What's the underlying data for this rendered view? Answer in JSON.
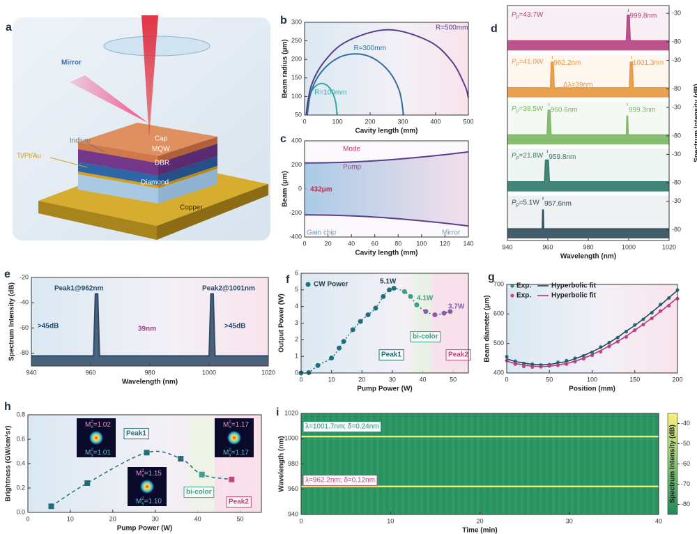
{
  "illustration": {
    "label": "a",
    "mirror": "Mirror",
    "indium": "Indium",
    "tiptau": "Ti/Pt/Au",
    "cap": "Cap",
    "mqw": "MQW",
    "dbr": "DBR",
    "diamond": "Diamond",
    "copper": "Copper"
  },
  "chart_data": [
    {
      "label": "b",
      "type": "line",
      "xlabel": "Cavity length (mm)",
      "ylabel": "Beam radius (μm)",
      "xlim": [
        0,
        500
      ],
      "ylim": [
        50,
        300
      ],
      "xticks": [
        0,
        100,
        200,
        300,
        400,
        500
      ],
      "yticks": [
        50,
        100,
        150,
        200,
        250,
        300
      ],
      "series": [
        {
          "name": "R=100mm",
          "color": "#3aa6a0",
          "x": [
            5,
            10,
            20,
            35,
            52,
            70,
            85,
            95,
            99
          ],
          "values": [
            50,
            88,
            112,
            129,
            135,
            129,
            111,
            84,
            50
          ]
        },
        {
          "name": "R=300mm",
          "color": "#2f6f9f",
          "x": [
            8,
            20,
            50,
            100,
            155,
            210,
            260,
            290,
            302
          ],
          "values": [
            50,
            113,
            165,
            203,
            215,
            203,
            165,
            113,
            50
          ]
        },
        {
          "name": "R=500mm",
          "color": "#5a3d8f",
          "x": [
            5,
            20,
            60,
            130,
            255,
            380,
            450,
            490,
            500
          ],
          "values": [
            50,
            128,
            194,
            249,
            280,
            249,
            194,
            128,
            96
          ]
        }
      ]
    },
    {
      "label": "c",
      "type": "line",
      "xlabel": "Cavity length (mm)",
      "ylabel": "Beam (μm)",
      "xlim": [
        0,
        140
      ],
      "ylim": [
        -400,
        400
      ],
      "xticks": [
        0,
        20,
        40,
        60,
        80,
        100,
        120,
        140
      ],
      "yticks": [
        -400,
        -200,
        0,
        200,
        400
      ],
      "series": [
        {
          "color": "#5a3d8f",
          "x": [
            0,
            20,
            40,
            60,
            80,
            100,
            120,
            140
          ],
          "values": [
            216,
            218,
            224,
            234,
            248,
            265,
            285,
            308
          ]
        },
        {
          "color": "#5a3d8f",
          "x": [
            0,
            20,
            40,
            60,
            80,
            100,
            120,
            140
          ],
          "values": [
            -216,
            -218,
            -224,
            -234,
            -248,
            -265,
            -285,
            -308
          ]
        }
      ],
      "annotations": [
        "432μm",
        "Mode",
        "Pump",
        "Gain chip",
        "Mirror"
      ]
    },
    {
      "label": "d",
      "type": "spectra_stack",
      "xlabel": "Wavelength (nm)",
      "ylabel": "Spectrum Intensity (dB)",
      "xlim": [
        940,
        1020
      ],
      "ylim": [
        -95,
        -20
      ],
      "xticks": [
        940,
        960,
        980,
        1000,
        1020
      ],
      "yticks": [
        -80,
        -30
      ],
      "label_symbol": "P",
      "label_sub": "p",
      "rows": [
        {
          "label": "=43.7W",
          "color": "#b5427f",
          "x": [
            940,
            998.8,
            999.3,
            1000.3,
            1000.8,
            1020
          ],
          "values": [
            -78,
            -78,
            -33,
            -33,
            -78,
            -78
          ],
          "peaks": [
            {
              "value": 999.8,
              "label": "999.8nm"
            }
          ]
        },
        {
          "label": "=41.0W",
          "color": "#e8963f",
          "x": [
            940,
            961.2,
            961.7,
            962.7,
            963.2,
            1000.3,
            1000.8,
            1001.8,
            1002.3,
            1020
          ],
          "values": [
            -78,
            -78,
            -33,
            -33,
            -78,
            -78,
            -33,
            -33,
            -78,
            -78
          ],
          "peaks": [
            {
              "value": 962.2,
              "label": "962.2nm"
            },
            {
              "value": 1001.3,
              "label": "1001.3nm"
            }
          ]
        },
        {
          "label": "=38.5W",
          "color": "#7bb662",
          "x": [
            940,
            959.6,
            960.1,
            961.1,
            961.6,
            998.8,
            999.1,
            999.5,
            999.8,
            1020
          ],
          "values": [
            -78,
            -78,
            -35,
            -35,
            -78,
            -78,
            -45,
            -45,
            -78,
            -78
          ],
          "peaks": [
            {
              "value": 960.6,
              "label": "960.6nm"
            },
            {
              "value": 999.3,
              "label": "999.3nm"
            }
          ]
        },
        {
          "label": "=21.8W",
          "color": "#2f7a6b",
          "x": [
            940,
            958.3,
            958.8,
            960.3,
            960.8,
            1020
          ],
          "values": [
            -78,
            -78,
            -40,
            -40,
            -78,
            -78
          ],
          "peaks": [
            {
              "value": 959.8,
              "label": "959.8nm"
            }
          ]
        },
        {
          "label": "=5.1W",
          "color": "#2e4d5a",
          "x": [
            940,
            957.2,
            957.4,
            957.8,
            958,
            1020
          ],
          "values": [
            -78,
            -78,
            -45,
            -45,
            -78,
            -78
          ],
          "peaks": [
            {
              "value": 957.6,
              "label": "957.6nm"
            }
          ]
        }
      ],
      "annotations": [
        "Δλ=39nm"
      ]
    },
    {
      "label": "e",
      "type": "line",
      "xlabel": "Wavelength (nm)",
      "ylabel": "Spectrum Intensity (dB)",
      "xlim": [
        940,
        1020
      ],
      "ylim": [
        -90,
        -20
      ],
      "xticks": [
        940,
        960,
        980,
        1000,
        1020
      ],
      "yticks": [
        -80,
        -60,
        -40,
        -20
      ],
      "series": [
        {
          "color": "#2e4a66",
          "x": [
            940,
            961,
            961.6,
            962.4,
            963,
            1000,
            1000.6,
            1001.4,
            1002,
            1020
          ],
          "values": [
            -82,
            -82,
            -33,
            -33,
            -82,
            -82,
            -33,
            -33,
            -82,
            -82
          ]
        }
      ],
      "annotations": [
        "Peak1@962nm",
        "Peak2@1001nm",
        ">45dB",
        ">45dB",
        "39nm"
      ]
    },
    {
      "label": "f",
      "type": "scatter",
      "xlabel": "Pump Power (W)",
      "ylabel": "Output Power (W)",
      "xlim": [
        0,
        55
      ],
      "ylim": [
        0,
        6
      ],
      "xticks": [
        0,
        10,
        20,
        30,
        40,
        50
      ],
      "yticks": [
        0,
        1,
        2,
        3,
        4,
        5,
        6
      ],
      "series": [
        {
          "name": "CW Power",
          "color": "#1f6e7a",
          "connect": "dotted",
          "x": [
            0,
            2.5,
            5.5,
            10,
            12.5,
            14,
            17,
            19.5,
            22,
            24.5,
            27,
            29,
            30.5,
            34,
            36,
            38,
            41,
            44,
            47,
            49
          ],
          "values": [
            0,
            0.02,
            0.45,
            0.9,
            1.5,
            1.9,
            2.6,
            3.1,
            3.5,
            3.9,
            4.6,
            5.0,
            5.1,
            4.9,
            4.6,
            4.1,
            3.7,
            3.5,
            3.6,
            3.7
          ],
          "point_colors": [
            "#1f6e7a",
            "#1f6e7a",
            "#1f6e7a",
            "#1f6e7a",
            "#1f6e7a",
            "#1f6e7a",
            "#1f6e7a",
            "#1f6e7a",
            "#1f6e7a",
            "#1f6e7a",
            "#1f6e7a",
            "#1f6e7a",
            "#1f6e7a",
            "#3f9e86",
            "#3f9e86",
            "#3f9e86",
            "#8a5aa8",
            "#8a5aa8",
            "#8a5aa8",
            "#8a5aa8"
          ]
        }
      ],
      "annotations": [
        "5.1W",
        "4.1W",
        "3.7W",
        "Peak1",
        "bi-color",
        "Peak2"
      ]
    },
    {
      "label": "g",
      "type": "scatter",
      "xlabel": "Position (mm)",
      "ylabel": "Beam diameter (μm)",
      "xlim": [
        0,
        200
      ],
      "ylim": [
        400,
        700
      ],
      "xticks": [
        0,
        50,
        100,
        150,
        200
      ],
      "yticks": [
        400,
        500,
        600,
        700
      ],
      "legend": "upper left",
      "series": [
        {
          "name": "Exp.",
          "color": "#2a7f8a",
          "mode": "markers",
          "x": [
            0,
            10,
            20,
            30,
            40,
            50,
            60,
            70,
            80,
            90,
            100,
            110,
            120,
            130,
            140,
            150,
            160,
            170,
            180,
            190,
            200
          ],
          "values": [
            455,
            440,
            432,
            430,
            427,
            428,
            436,
            442,
            450,
            458,
            470,
            488,
            503,
            520,
            540,
            563,
            582,
            604,
            632,
            654,
            681
          ]
        },
        {
          "name": "Hyperbolic fit",
          "color": "#1f4a5a",
          "mode": "line",
          "x": [
            0,
            10,
            20,
            30,
            40,
            50,
            60,
            70,
            80,
            90,
            100,
            110,
            120,
            130,
            140,
            150,
            160,
            170,
            180,
            190,
            200
          ],
          "values": [
            448,
            439,
            434,
            429,
            428,
            429,
            434,
            439,
            448,
            459,
            472,
            486,
            503,
            521,
            542,
            561,
            583,
            606,
            630,
            655,
            680
          ]
        },
        {
          "name": "Exp.",
          "color": "#c9488a",
          "mode": "markers",
          "x": [
            0,
            10,
            20,
            30,
            40,
            50,
            60,
            70,
            80,
            90,
            100,
            110,
            120,
            130,
            140,
            150,
            160,
            170,
            180,
            190,
            200
          ],
          "values": [
            442,
            430,
            422,
            420,
            421,
            424,
            426,
            430,
            438,
            448,
            460,
            472,
            490,
            506,
            522,
            545,
            564,
            585,
            610,
            628,
            652
          ]
        },
        {
          "name": "Hyperbolic fit",
          "color": "#b03a7a",
          "mode": "line",
          "x": [
            0,
            10,
            20,
            30,
            40,
            50,
            60,
            70,
            80,
            90,
            100,
            110,
            120,
            130,
            140,
            150,
            160,
            170,
            180,
            190,
            200
          ],
          "values": [
            440,
            432,
            427,
            423,
            422,
            423,
            427,
            432,
            440,
            450,
            462,
            476,
            491,
            507,
            525,
            545,
            565,
            586,
            608,
            631,
            655
          ]
        }
      ]
    },
    {
      "label": "h",
      "type": "scatter",
      "xlabel": "Pump Power (W)",
      "ylabel": "Brightness (GW/cm²sr)",
      "xlim": [
        0,
        55
      ],
      "ylim": [
        0,
        0.8
      ],
      "xticks": [
        0,
        10,
        20,
        30,
        40,
        50
      ],
      "yticks": [
        {
          "value": 0,
          "label": "0.0"
        },
        0.2,
        0.4,
        0.6,
        0.8
      ],
      "series": [
        {
          "color": "#1f6e7a",
          "marker": "square",
          "connect": "dashed",
          "x": [
            5.5,
            14,
            28,
            36,
            41,
            48
          ],
          "values": [
            0.05,
            0.24,
            0.49,
            0.44,
            0.31,
            0.27
          ],
          "point_colors": [
            "#1f6e7a",
            "#1f6e7a",
            "#1f6e7a",
            "#1f6e7a",
            "#3f9e86",
            "#c0487a"
          ]
        }
      ],
      "annotations": [
        "Peak1",
        "bi-color",
        "Peak2"
      ],
      "inset_symbol": "M",
      "inset_sup": "2",
      "inset_sub": [
        "x",
        "y"
      ],
      "insets": [
        {
          "mx": "=1.02",
          "my": "=1.01"
        },
        {
          "mx": "=1.17",
          "my": "=1.17"
        },
        {
          "mx": "=1.15",
          "my": "=1.10"
        }
      ]
    },
    {
      "label": "i",
      "type": "heatmap",
      "xlabel": "Time (min)",
      "ylabel": "Wavelength (nm)",
      "xlim": [
        0,
        40
      ],
      "ylim": [
        940,
        1020
      ],
      "xticks": [
        0,
        10,
        20,
        30,
        40
      ],
      "yticks": [
        940,
        960,
        980,
        1000,
        1020
      ],
      "lines": [
        1001.7,
        962.2
      ],
      "annotations": [
        "λ=1001.7nm; δ=0.24nm",
        "λ=962.2nm; δ=0.12nm"
      ],
      "colorbar": {
        "label": "Spectrum Intensity (dB)",
        "lim": [
          -85,
          -35
        ],
        "ticks": [
          -40,
          -50,
          -60,
          -70,
          -80
        ]
      }
    }
  ]
}
